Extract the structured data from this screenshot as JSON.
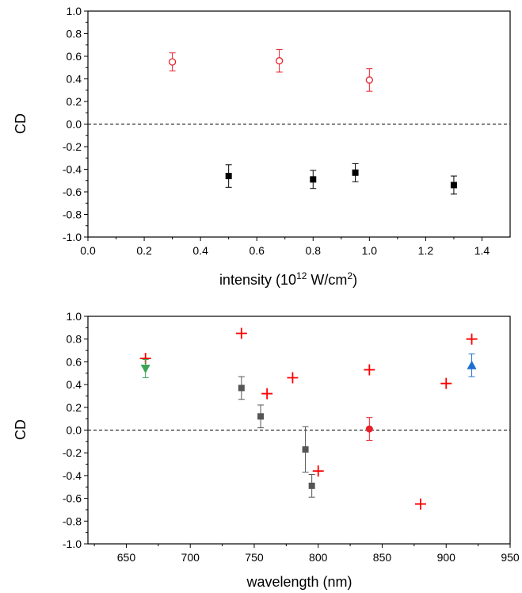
{
  "chart_data": [
    {
      "type": "scatter",
      "xlabel": "intensity",
      "xlabel_unit_prefix": " (10",
      "xlabel_unit_exp": "12",
      "xlabel_unit_mid": " W/cm",
      "xlabel_unit_exp2": "2",
      "xlabel_unit_suffix": ")",
      "ylabel": "CD",
      "xlim": [
        0.0,
        1.5
      ],
      "ylim": [
        -1.0,
        1.0
      ],
      "xticks": [
        0.0,
        0.2,
        0.4,
        0.6,
        0.8,
        1.0,
        1.2,
        1.4
      ],
      "xtick_labels": [
        "0.0",
        "0.2",
        "0.4",
        "0.6",
        "0.8",
        "1.0",
        "1.2",
        "1.4"
      ],
      "yticks": [
        -1.0,
        -0.8,
        -0.6,
        -0.4,
        -0.2,
        0.0,
        0.2,
        0.4,
        0.6,
        0.8,
        1.0
      ],
      "ytick_labels": [
        "-1.0",
        "-0.8",
        "-0.6",
        "-0.4",
        "-0.2",
        "0.0",
        "0.2",
        "0.4",
        "0.6",
        "0.8",
        "1.0"
      ],
      "reference_line": {
        "y": 0.0,
        "style": "dashed"
      },
      "grid": false,
      "series": [
        {
          "marker": "open-circle",
          "color": "#e8202a",
          "points": [
            {
              "x": 0.3,
              "y": 0.55,
              "err": 0.08
            },
            {
              "x": 0.68,
              "y": 0.56,
              "err": 0.1
            },
            {
              "x": 1.0,
              "y": 0.39,
              "err": 0.1
            }
          ]
        },
        {
          "marker": "filled-square",
          "color": "#000000",
          "points": [
            {
              "x": 0.5,
              "y": -0.46,
              "err": 0.1
            },
            {
              "x": 0.8,
              "y": -0.49,
              "err": 0.08
            },
            {
              "x": 0.95,
              "y": -0.43,
              "err": 0.08
            },
            {
              "x": 1.3,
              "y": -0.54,
              "err": 0.08
            }
          ]
        }
      ]
    },
    {
      "type": "scatter",
      "xlabel": "wavelength (nm)",
      "ylabel": "CD",
      "xlim": [
        620,
        950
      ],
      "ylim": [
        -1.0,
        1.0
      ],
      "xticks": [
        650,
        700,
        750,
        800,
        850,
        900,
        950
      ],
      "xtick_labels": [
        "650",
        "700",
        "750",
        "800",
        "850",
        "900",
        "950"
      ],
      "yticks": [
        -1.0,
        -0.8,
        -0.6,
        -0.4,
        -0.2,
        0.0,
        0.2,
        0.4,
        0.6,
        0.8,
        1.0
      ],
      "ytick_labels": [
        "-1.0",
        "-0.8",
        "-0.6",
        "-0.4",
        "-0.2",
        "0.0",
        "0.2",
        "0.4",
        "0.6",
        "0.8",
        "1.0"
      ],
      "reference_line": {
        "y": 0.0,
        "style": "dashed"
      },
      "grid": false,
      "series": [
        {
          "marker": "plus",
          "color": "#ff0000",
          "points": [
            {
              "x": 665,
              "y": 0.63
            },
            {
              "x": 740,
              "y": 0.85
            },
            {
              "x": 760,
              "y": 0.32
            },
            {
              "x": 780,
              "y": 0.46
            },
            {
              "x": 800,
              "y": -0.36
            },
            {
              "x": 840,
              "y": 0.53
            },
            {
              "x": 880,
              "y": -0.65
            },
            {
              "x": 900,
              "y": 0.41
            },
            {
              "x": 920,
              "y": 0.8
            }
          ]
        },
        {
          "marker": "filled-square",
          "color": "#555555",
          "points": [
            {
              "x": 740,
              "y": 0.37,
              "err": 0.1
            },
            {
              "x": 755,
              "y": 0.12,
              "err": 0.1
            },
            {
              "x": 790,
              "y": -0.17,
              "err": 0.2
            },
            {
              "x": 795,
              "y": -0.49,
              "err": 0.1
            }
          ]
        },
        {
          "marker": "down-triangle",
          "color": "#3aa655",
          "points": [
            {
              "x": 665,
              "y": 0.54,
              "err": 0.08
            }
          ]
        },
        {
          "marker": "filled-circle",
          "color": "#e8202a",
          "points": [
            {
              "x": 840,
              "y": 0.01,
              "err": 0.1
            }
          ]
        },
        {
          "marker": "up-triangle",
          "color": "#1f6fd1",
          "points": [
            {
              "x": 920,
              "y": 0.57,
              "err": 0.1
            }
          ]
        }
      ]
    }
  ]
}
